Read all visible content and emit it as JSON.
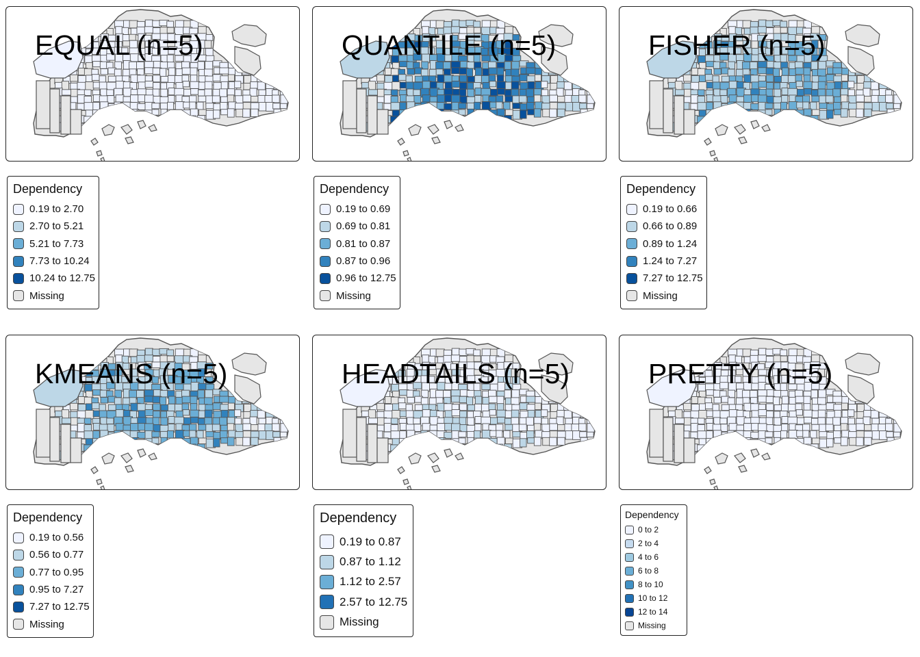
{
  "maps": [
    {
      "title": "EQUAL (n=5)",
      "legend_title": "Dependency",
      "classes": [
        "0.19 to 2.70",
        "2.70 to 5.21",
        "5.21 to 7.73",
        "7.73 to 10.24",
        "10.24 to 12.75",
        "Missing"
      ],
      "colors": [
        "#EFF3FF",
        "#BDD7E7",
        "#6BAED6",
        "#3182BD",
        "#08519C",
        "#E6E6E6"
      ]
    },
    {
      "title": "QUANTILE (n=5)",
      "legend_title": "Dependency",
      "classes": [
        "0.19 to 0.69",
        "0.69 to 0.81",
        "0.81 to 0.87",
        "0.87 to 0.96",
        "0.96 to 12.75",
        "Missing"
      ],
      "colors": [
        "#EFF3FF",
        "#BDD7E7",
        "#6BAED6",
        "#3182BD",
        "#08519C",
        "#E6E6E6"
      ]
    },
    {
      "title": "FISHER (n=5)",
      "legend_title": "Dependency",
      "classes": [
        "0.19 to 0.66",
        "0.66 to 0.89",
        "0.89 to 1.24",
        "1.24 to 7.27",
        "7.27 to 12.75",
        "Missing"
      ],
      "colors": [
        "#EFF3FF",
        "#BDD7E7",
        "#6BAED6",
        "#3182BD",
        "#08519C",
        "#E6E6E6"
      ]
    },
    {
      "title": "KMEANS (n=5)",
      "legend_title": "Dependency",
      "classes": [
        "0.19 to 0.56",
        "0.56 to 0.77",
        "0.77 to 0.95",
        "0.95 to 7.27",
        "7.27 to 12.75",
        "Missing"
      ],
      "colors": [
        "#EFF3FF",
        "#BDD7E7",
        "#6BAED6",
        "#3182BD",
        "#08519C",
        "#E6E6E6"
      ]
    },
    {
      "title": "HEADTAILS (n=5)",
      "legend_title": "Dependency",
      "classes": [
        "0.19 to 0.87",
        "0.87 to 1.12",
        "1.12 to 2.57",
        "2.57 to 12.75",
        "Missing"
      ],
      "colors": [
        "#EFF3FF",
        "#BDD7E7",
        "#6BAED6",
        "#2171B5",
        "#E6E6E6"
      ]
    },
    {
      "title": "PRETTY (n=5)",
      "legend_title": "Dependency",
      "classes": [
        "0 to 2",
        "2 to 4",
        "4 to 6",
        "6 to 8",
        "8 to 10",
        "10 to 12",
        "12 to 14",
        "Missing"
      ],
      "colors": [
        "#EFF3FF",
        "#C6DBEF",
        "#9ECAE1",
        "#6BAED6",
        "#4292C6",
        "#2171B5",
        "#084594",
        "#E6E6E6"
      ]
    }
  ],
  "map_outline_color": "#555555",
  "missing_color": "#E6E6E6"
}
